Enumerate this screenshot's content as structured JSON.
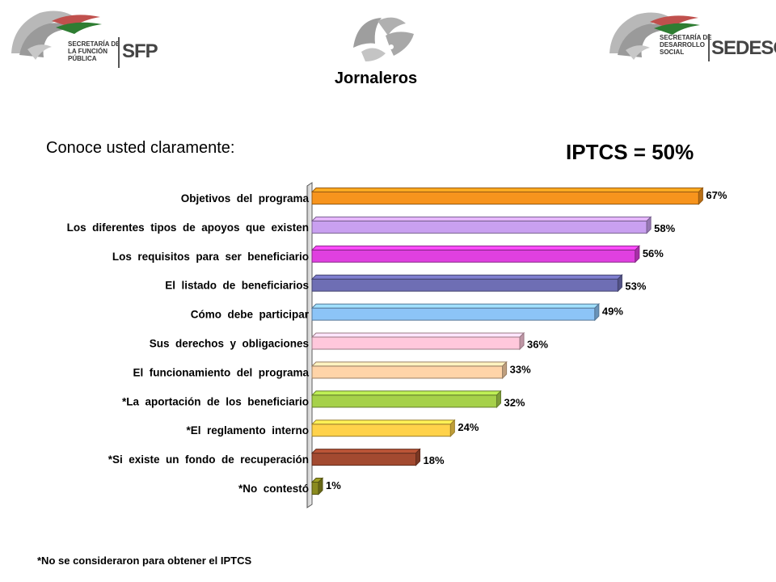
{
  "header": {
    "logo_left_lines": [
      "SECRETARÍA DE",
      "LA FUNCIÓN",
      "PÚBLICA"
    ],
    "logo_left_abbr": "SFP",
    "logo_right_lines": [
      "SECRETARÍA DE",
      "DESARROLLO",
      "SOCIAL"
    ],
    "logo_right_abbr": "SEDESOL",
    "title": "Jornaleros"
  },
  "question": "Conoce usted claramente:",
  "index_label": "IPTCS = 50%",
  "footnote": "*No se consideraron  para obtener  el IPTCS",
  "chart_data": {
    "type": "bar",
    "orientation": "horizontal",
    "categories": [
      "Objetivos  del  programa",
      "Los  diferentes  tipos  de  apoyos  que  existen",
      "Los  requisitos  para  ser  beneficiario",
      "El  listado  de  beneficiarios",
      "Cómo  debe  participar",
      "Sus  derechos  y  obligaciones",
      "El  funcionamiento  del  programa",
      "*La  aportación  de  los  beneficiario",
      "*El  reglamento  interno",
      "*Si  existe  un  fondo  de  recuperación",
      "*No  contestó"
    ],
    "values": [
      67,
      58,
      56,
      53,
      49,
      36,
      33,
      32,
      24,
      18,
      1
    ],
    "value_labels": [
      "67%",
      "58%",
      "56%",
      "53%",
      "49%",
      "36%",
      "33%",
      "32%",
      "24%",
      "18%",
      "1%"
    ],
    "colors": [
      "#f7941d",
      "#c9a0f0",
      "#e040e0",
      "#6e6eb4",
      "#8cc4f7",
      "#ffc8dc",
      "#ffd4a8",
      "#a6d14a",
      "#ffd24a",
      "#a34a30",
      "#8a8a1e"
    ],
    "xlim": [
      0,
      100
    ],
    "grid": false,
    "legend": "none"
  }
}
